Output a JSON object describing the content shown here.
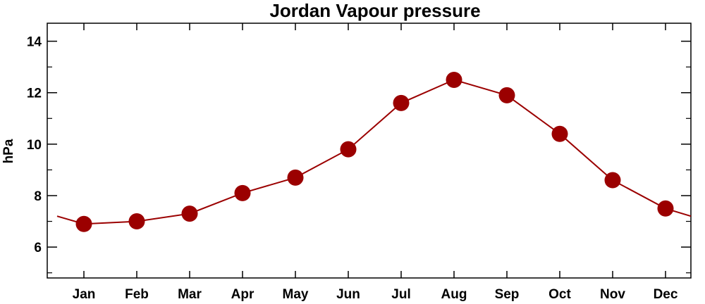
{
  "chart_data": {
    "type": "line",
    "title": "Jordan Vapour pressure",
    "xlabel": "",
    "ylabel": "hPa",
    "categories": [
      "Jan",
      "Feb",
      "Mar",
      "Apr",
      "May",
      "Jun",
      "Jul",
      "Aug",
      "Sep",
      "Oct",
      "Nov",
      "Dec"
    ],
    "series": [
      {
        "values": [
          6.9,
          7.0,
          7.3,
          8.1,
          8.7,
          9.8,
          11.6,
          12.5,
          11.9,
          10.4,
          8.6,
          7.5
        ]
      }
    ],
    "edge_values": {
      "before_jan": 7.2,
      "after_dec": 7.2
    },
    "ylim": [
      4.8,
      14.7
    ],
    "yticks": [
      6,
      8,
      10,
      12,
      14
    ],
    "grid": false,
    "colors": {
      "line": "#9b0000",
      "marker": "#9b0000",
      "axis": "#000000"
    }
  }
}
